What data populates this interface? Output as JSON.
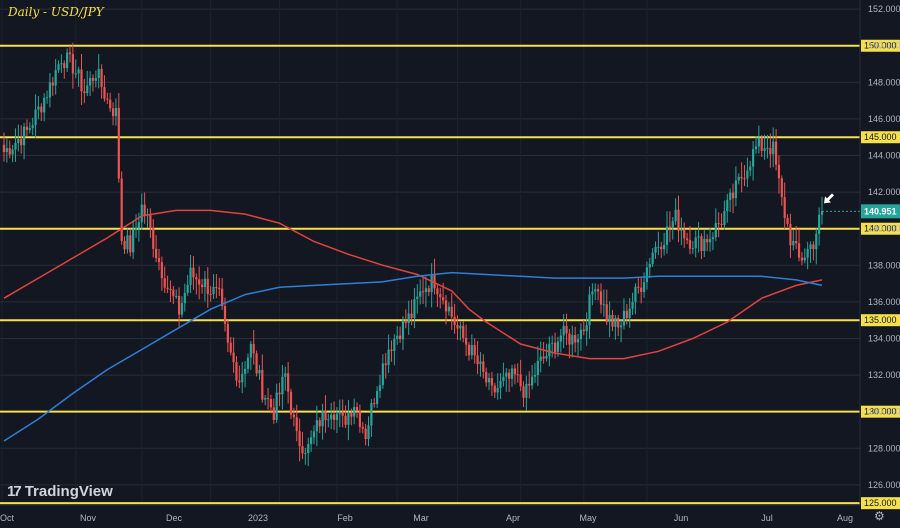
{
  "title": "Daily - USD/JPY",
  "brand": "TradingView",
  "brand_mark": "17",
  "settings_icon": "gear-icon",
  "colors": {
    "background": "#131722",
    "grid": "#2a2e39",
    "up": "#26a69a",
    "down": "#ef5350",
    "level": "#f5e04a",
    "ma_red": "#e0443e",
    "ma_blue": "#2f7ed8",
    "last_price_bg": "#26a69a"
  },
  "chart_data": {
    "type": "candlestick",
    "symbol": "USD/JPY",
    "timeframe": "Daily",
    "ylim": [
      124.9,
      152.5
    ],
    "y_ticks": [
      126,
      128,
      130,
      132,
      134,
      136,
      138,
      140,
      142,
      144,
      146,
      148,
      150,
      152
    ],
    "x_ticks": [
      "Oct",
      "Nov",
      "Dec",
      "2023",
      "Feb",
      "Mar",
      "Apr",
      "May",
      "Jun",
      "Jul",
      "Aug"
    ],
    "horizontal_levels": [
      "125.000",
      "130.000",
      "135.000",
      "140.000",
      "145.000",
      "150.000"
    ],
    "last_price": "140.951",
    "annotation": "white arrow pointing to latest candle",
    "anchors": [
      {
        "t": 0,
        "p": 144.2
      },
      {
        "t": 8,
        "p": 145.3
      },
      {
        "t": 12,
        "p": 146.5
      },
      {
        "t": 16,
        "p": 147.8
      },
      {
        "t": 20,
        "p": 149.4
      },
      {
        "t": 24,
        "p": 148.9
      },
      {
        "t": 28,
        "p": 147.5
      },
      {
        "t": 32,
        "p": 148.6
      },
      {
        "t": 36,
        "p": 147.0
      },
      {
        "t": 39,
        "p": 146.3
      },
      {
        "t": 41,
        "p": 139.5
      },
      {
        "t": 44,
        "p": 139.0
      },
      {
        "t": 48,
        "p": 141.2
      },
      {
        "t": 50,
        "p": 140.5
      },
      {
        "t": 53,
        "p": 138.7
      },
      {
        "t": 57,
        "p": 136.8
      },
      {
        "t": 61,
        "p": 135.5
      },
      {
        "t": 65,
        "p": 137.5
      },
      {
        "t": 70,
        "p": 137.0
      },
      {
        "t": 75,
        "p": 136.2
      },
      {
        "t": 78,
        "p": 133.5
      },
      {
        "t": 82,
        "p": 131.8
      },
      {
        "t": 86,
        "p": 133.5
      },
      {
        "t": 90,
        "p": 131.2
      },
      {
        "t": 94,
        "p": 130.0
      },
      {
        "t": 98,
        "p": 132.0
      },
      {
        "t": 102,
        "p": 128.5
      },
      {
        "t": 106,
        "p": 128.0
      },
      {
        "t": 110,
        "p": 129.5
      },
      {
        "t": 114,
        "p": 130.3
      },
      {
        "t": 118,
        "p": 129.4
      },
      {
        "t": 122,
        "p": 130.5
      },
      {
        "t": 126,
        "p": 128.8
      },
      {
        "t": 130,
        "p": 131.5
      },
      {
        "t": 134,
        "p": 133.5
      },
      {
        "t": 138,
        "p": 134.5
      },
      {
        "t": 142,
        "p": 135.3
      },
      {
        "t": 146,
        "p": 136.8
      },
      {
        "t": 150,
        "p": 137.2
      },
      {
        "t": 154,
        "p": 136.0
      },
      {
        "t": 158,
        "p": 134.5
      },
      {
        "t": 162,
        "p": 133.5
      },
      {
        "t": 166,
        "p": 132.3
      },
      {
        "t": 170,
        "p": 131.0
      },
      {
        "t": 174,
        "p": 131.6
      },
      {
        "t": 178,
        "p": 131.9
      },
      {
        "t": 182,
        "p": 131.0
      },
      {
        "t": 186,
        "p": 132.5
      },
      {
        "t": 190,
        "p": 133.3
      },
      {
        "t": 194,
        "p": 134.2
      },
      {
        "t": 198,
        "p": 134.0
      },
      {
        "t": 202,
        "p": 134.6
      },
      {
        "t": 206,
        "p": 137.2
      },
      {
        "t": 210,
        "p": 135.2
      },
      {
        "t": 214,
        "p": 134.5
      },
      {
        "t": 218,
        "p": 135.8
      },
      {
        "t": 222,
        "p": 137.0
      },
      {
        "t": 226,
        "p": 138.8
      },
      {
        "t": 230,
        "p": 139.6
      },
      {
        "t": 234,
        "p": 140.6
      },
      {
        "t": 238,
        "p": 139.5
      },
      {
        "t": 242,
        "p": 139.2
      },
      {
        "t": 246,
        "p": 139.6
      },
      {
        "t": 250,
        "p": 140.5
      },
      {
        "t": 254,
        "p": 141.8
      },
      {
        "t": 258,
        "p": 143.2
      },
      {
        "t": 262,
        "p": 144.4
      },
      {
        "t": 266,
        "p": 144.6
      },
      {
        "t": 268,
        "p": 144.3
      },
      {
        "t": 271,
        "p": 141.5
      },
      {
        "t": 274,
        "p": 139.5
      },
      {
        "t": 277,
        "p": 138.3
      },
      {
        "t": 279,
        "p": 138.6
      },
      {
        "t": 282,
        "p": 139.3
      },
      {
        "t": 285,
        "p": 140.951
      }
    ],
    "series": [
      {
        "name": "Moving Average (red)",
        "points": [
          {
            "t": 0,
            "p": 136.2
          },
          {
            "t": 12,
            "p": 137.3
          },
          {
            "t": 24,
            "p": 138.4
          },
          {
            "t": 36,
            "p": 139.5
          },
          {
            "t": 48,
            "p": 140.7
          },
          {
            "t": 60,
            "p": 141.0
          },
          {
            "t": 72,
            "p": 141.0
          },
          {
            "t": 84,
            "p": 140.8
          },
          {
            "t": 96,
            "p": 140.3
          },
          {
            "t": 108,
            "p": 139.3
          },
          {
            "t": 120,
            "p": 138.6
          },
          {
            "t": 132,
            "p": 138.0
          },
          {
            "t": 144,
            "p": 137.5
          },
          {
            "t": 156,
            "p": 136.6
          },
          {
            "t": 162,
            "p": 135.6
          },
          {
            "t": 168,
            "p": 134.9
          },
          {
            "t": 180,
            "p": 133.7
          },
          {
            "t": 192,
            "p": 133.2
          },
          {
            "t": 204,
            "p": 132.9
          },
          {
            "t": 216,
            "p": 132.9
          },
          {
            "t": 228,
            "p": 133.3
          },
          {
            "t": 240,
            "p": 134.0
          },
          {
            "t": 252,
            "p": 134.9
          },
          {
            "t": 264,
            "p": 136.2
          },
          {
            "t": 276,
            "p": 136.9
          },
          {
            "t": 285,
            "p": 137.2
          }
        ]
      },
      {
        "name": "Moving Average (blue)",
        "points": [
          {
            "t": 0,
            "p": 128.4
          },
          {
            "t": 12,
            "p": 129.6
          },
          {
            "t": 24,
            "p": 131.0
          },
          {
            "t": 36,
            "p": 132.3
          },
          {
            "t": 48,
            "p": 133.4
          },
          {
            "t": 60,
            "p": 134.5
          },
          {
            "t": 72,
            "p": 135.6
          },
          {
            "t": 84,
            "p": 136.4
          },
          {
            "t": 96,
            "p": 136.8
          },
          {
            "t": 108,
            "p": 136.9
          },
          {
            "t": 120,
            "p": 137.0
          },
          {
            "t": 132,
            "p": 137.1
          },
          {
            "t": 144,
            "p": 137.4
          },
          {
            "t": 156,
            "p": 137.6
          },
          {
            "t": 168,
            "p": 137.5
          },
          {
            "t": 180,
            "p": 137.4
          },
          {
            "t": 192,
            "p": 137.3
          },
          {
            "t": 204,
            "p": 137.3
          },
          {
            "t": 216,
            "p": 137.3
          },
          {
            "t": 228,
            "p": 137.4
          },
          {
            "t": 240,
            "p": 137.4
          },
          {
            "t": 252,
            "p": 137.4
          },
          {
            "t": 264,
            "p": 137.4
          },
          {
            "t": 276,
            "p": 137.2
          },
          {
            "t": 285,
            "p": 136.9
          }
        ]
      }
    ]
  }
}
